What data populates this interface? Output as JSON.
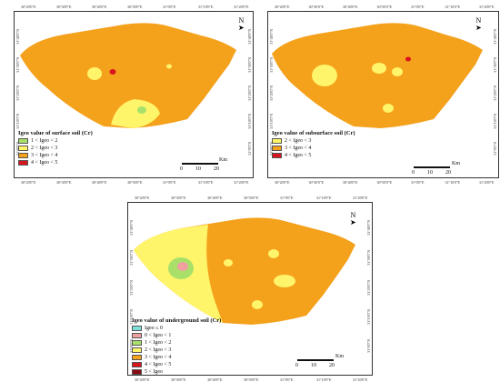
{
  "colors": {
    "orange": "#F4A11C",
    "yellow": "#FFF56A",
    "lightgreen": "#A8E06A",
    "red": "#D8141E",
    "darkred": "#8B0A12",
    "cyan": "#7FE0DA",
    "pink": "#F0A0A0"
  },
  "x_ticks": [
    "30°20'0\"E",
    "30°30'0\"E",
    "30°40'0\"E",
    "30°50'0\"E",
    "31°0'0\"E",
    "31°10'0\"E",
    "31°20'0\"E"
  ],
  "y_ticks": [
    "31°40'0\"N",
    "31°30'0\"N",
    "31°20'0\"N",
    "31°10'0\"N",
    "31°0'0\"N"
  ],
  "scale": {
    "unit": "Km",
    "labels": [
      "0",
      "10",
      "20"
    ]
  },
  "north_icon": "N",
  "panels": [
    {
      "legend_title": "Igeo value of surface soil (Cr)",
      "classes": [
        {
          "label": "1 < Igeo < 2",
          "color": "#A8E06A"
        },
        {
          "label": "2 < Igeo < 3",
          "color": "#FFF56A"
        },
        {
          "label": "3 < Igeo < 4",
          "color": "#F4A11C"
        },
        {
          "label": "4 < Igeo < 5",
          "color": "#D8141E"
        }
      ]
    },
    {
      "legend_title": "Igeo value of subsurface soil (Cr)",
      "classes": [
        {
          "label": "2 < Igeo < 3",
          "color": "#FFF56A"
        },
        {
          "label": "3 < Igeo < 4",
          "color": "#F4A11C"
        },
        {
          "label": "4 < Igeo < 5",
          "color": "#D8141E"
        }
      ]
    },
    {
      "legend_title": "Igeo value of underground soil (Cr)",
      "classes": [
        {
          "label": "Igeo ≤ 0",
          "color": "#7FE0DA"
        },
        {
          "label": "0 < Igeo < 1",
          "color": "#F0A0A0"
        },
        {
          "label": "1 < Igeo < 2",
          "color": "#A8E06A"
        },
        {
          "label": "2 < Igeo < 3",
          "color": "#FFF56A"
        },
        {
          "label": "3 < Igeo < 4",
          "color": "#F4A11C"
        },
        {
          "label": "4 < Igeo < 5",
          "color": "#D8141E"
        },
        {
          "label": "5 < Igeo",
          "color": "#8B0A12"
        }
      ]
    }
  ]
}
